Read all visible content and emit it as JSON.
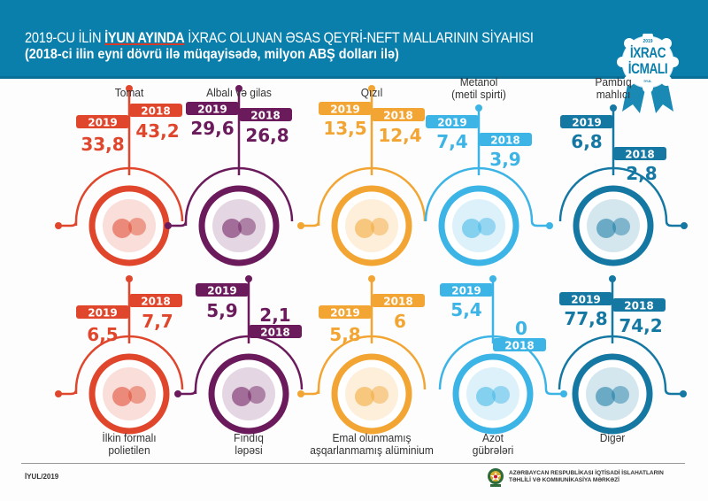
{
  "header": {
    "title_prefix": "2019-CU İLİN ",
    "title_highlight": "İYUN AYINDA",
    "title_suffix": " İXRAC OLUNAN ƏSAS QEYRİ-NEFT MALLARININ SİYAHISI",
    "subtitle": "(2018-ci ilin eyni dövrü ilə müqayisədə, milyon ABŞ dolları ilə)"
  },
  "badge": {
    "year": "2019",
    "line1": "İXRAC",
    "line2": "İCMALI",
    "month": "İYUL"
  },
  "footer": {
    "date": "İYUL/2019",
    "org_line1": "AZƏRBAYCAN RESPUBLİKASI İQTİSADİ İSLAHATLARIN",
    "org_line2": "TƏHLİLİ VƏ KOMMUNİKASİYA MƏRKƏZİ"
  },
  "colors": {
    "header": "#0b7fab",
    "red": "#e0462c",
    "purple": "#6b1a5c",
    "orange": "#f2a533",
    "lightblue": "#3cb4e6",
    "darkblue": "#1478a3"
  },
  "chart_data": {
    "type": "table",
    "title": "2019-CU İLİN İYUN AYINDA İXRAC OLUNAN ƏSAS QEYRİ-NEFT MALLARININ SİYAHISI",
    "subtitle": "(2018-ci ilin eyni dövrü ilə müqayisədə, milyon ABŞ dolları ilə)",
    "series_names": [
      "2019",
      "2018"
    ],
    "items": [
      {
        "name": "Tomat",
        "v2019": "33,8",
        "v2018": "43,2",
        "color": "#e0462c",
        "icon": "tomato-icon"
      },
      {
        "name": "Albalı və gilas",
        "v2019": "29,6",
        "v2018": "26,8",
        "color": "#6b1a5c",
        "icon": "cherry-icon"
      },
      {
        "name": "Qızıl",
        "v2019": "13,5",
        "v2018": "12,4",
        "color": "#f2a533",
        "icon": "gold-bars-icon"
      },
      {
        "name": "Metanol\n(metil spirti)",
        "v2019": "7,4",
        "v2018": "3,9",
        "color": "#3cb4e6",
        "icon": "molecule-icon"
      },
      {
        "name": "Pambıq\nmahlıcı",
        "v2019": "6,8",
        "v2018": "2,8",
        "color": "#1478a3",
        "icon": "cotton-icon"
      },
      {
        "name": "İlkin formalı\npolietilen",
        "v2019": "6,5",
        "v2018": "7,7",
        "color": "#e0462c",
        "icon": "pellets-icon"
      },
      {
        "name": "Fındıq\nləpəsi",
        "v2019": "5,9",
        "v2018": "2,1",
        "color": "#6b1a5c",
        "icon": "hazelnut-icon"
      },
      {
        "name": "Emal olunmamış\naşqarlanmamış alüminium",
        "v2019": "5,8",
        "v2018": "6",
        "color": "#f2a533",
        "icon": "aluminium-icon"
      },
      {
        "name": "Azot\ngübrələri",
        "v2019": "5,4",
        "v2018": "0",
        "color": "#3cb4e6",
        "icon": "fertilizer-bag-icon"
      },
      {
        "name": "Digər",
        "v2019": "77,8",
        "v2018": "74,2",
        "color": "#1478a3",
        "icon": "containers-icon"
      }
    ]
  }
}
